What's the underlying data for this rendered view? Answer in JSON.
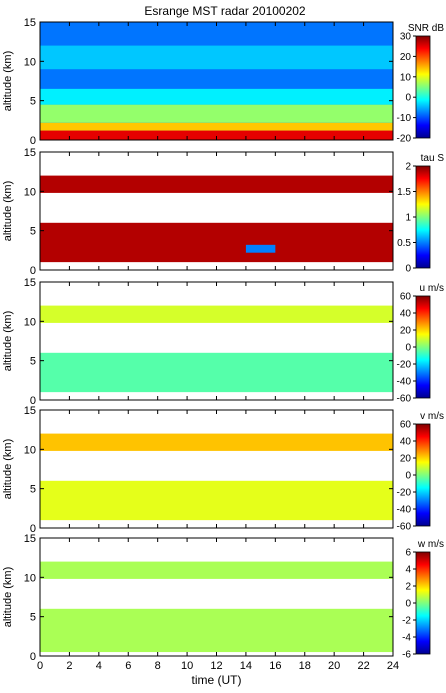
{
  "chart_data": {
    "title": "Esrange MST radar 20100202",
    "type": "heatmap",
    "xlabel": "time (UT)",
    "xlim": [
      0,
      24
    ],
    "x_ticks": [
      "0",
      "2",
      "4",
      "6",
      "8",
      "10",
      "12",
      "14",
      "16",
      "18",
      "20",
      "22",
      "24"
    ],
    "panels": [
      {
        "ylabel": "altitude (km)",
        "ylim": [
          0,
          15
        ],
        "y_ticks": [
          "0",
          "5",
          "10",
          "15"
        ],
        "colorbar_label": "SNR dB",
        "clim": [
          -20,
          30
        ],
        "colorbar_ticks": [
          "30",
          "20",
          "10",
          "0",
          "-10",
          "-20"
        ],
        "layers": [
          {
            "alt_start": 0,
            "alt_end": 15,
            "value": -8
          },
          {
            "alt_start": 0,
            "alt_end": 1.2,
            "value": 25
          },
          {
            "alt_start": 1.2,
            "alt_end": 2.2,
            "value": 14
          },
          {
            "alt_start": 2.2,
            "alt_end": 4.5,
            "value": 6
          },
          {
            "alt_start": 4.5,
            "alt_end": 6.5,
            "value": -2
          },
          {
            "alt_start": 9,
            "alt_end": 12,
            "value": -4
          }
        ]
      },
      {
        "ylabel": "altitude (km)",
        "ylim": [
          0,
          15
        ],
        "y_ticks": [
          "0",
          "5",
          "10",
          "15"
        ],
        "colorbar_label": "tau S",
        "clim": [
          0,
          2
        ],
        "colorbar_ticks": [
          "2",
          "1.5",
          "1",
          "0.5",
          "0"
        ],
        "layers": [
          {
            "alt_start": 1,
            "alt_end": 6,
            "value": 1.9
          },
          {
            "alt_start": 9.8,
            "alt_end": 12,
            "value": 1.9
          },
          {
            "alt_start": 2.2,
            "alt_end": 3.2,
            "value": 0.5,
            "t_start": 14,
            "t_end": 16
          }
        ]
      },
      {
        "ylabel": "altitude (km)",
        "ylim": [
          0,
          15
        ],
        "y_ticks": [
          "0",
          "5",
          "10",
          "15"
        ],
        "colorbar_label": "u m/s",
        "clim": [
          -60,
          60
        ],
        "colorbar_ticks": [
          "60",
          "40",
          "20",
          "0",
          "-20",
          "-40",
          "-60"
        ],
        "layers": [
          {
            "alt_start": 1,
            "alt_end": 6,
            "value": -5
          },
          {
            "alt_start": 9.8,
            "alt_end": 12,
            "value": 10
          }
        ]
      },
      {
        "ylabel": "altitude (km)",
        "ylim": [
          0,
          15
        ],
        "y_ticks": [
          "0",
          "5",
          "10",
          "15"
        ],
        "colorbar_label": "v m/s",
        "clim": [
          -60,
          60
        ],
        "colorbar_ticks": [
          "60",
          "40",
          "20",
          "0",
          "-20",
          "-40",
          "-60"
        ],
        "layers": [
          {
            "alt_start": 1,
            "alt_end": 6,
            "value": 12
          },
          {
            "alt_start": 9.8,
            "alt_end": 12,
            "value": 22
          }
        ]
      },
      {
        "ylabel": "altitude (km)",
        "ylim": [
          0,
          15
        ],
        "y_ticks": [
          "0",
          "5",
          "10",
          "15"
        ],
        "colorbar_label": "w m/s",
        "clim": [
          -6,
          6
        ],
        "colorbar_ticks": [
          "6",
          "4",
          "2",
          "0",
          "-2",
          "-4",
          "-6"
        ],
        "layers": [
          {
            "alt_start": 0.5,
            "alt_end": 6,
            "value": 0.5
          },
          {
            "alt_start": 9.8,
            "alt_end": 12,
            "value": 0.5
          }
        ]
      }
    ]
  }
}
